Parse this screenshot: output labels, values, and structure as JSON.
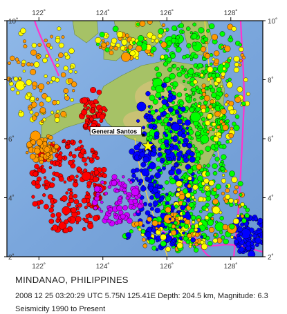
{
  "map": {
    "lon_ticks": [
      {
        "value": 122,
        "label": "122˚"
      },
      {
        "value": 124,
        "label": "124˚"
      },
      {
        "value": 126,
        "label": "126˚"
      },
      {
        "value": 128,
        "label": "128˚"
      }
    ],
    "lat_ticks": [
      {
        "value": 10,
        "label": "10˚"
      },
      {
        "value": 8,
        "label": "8˚"
      },
      {
        "value": 6,
        "label": "6˚"
      },
      {
        "value": 4,
        "label": "4˚"
      },
      {
        "value": 2,
        "label": "2˚"
      }
    ],
    "lon_range": [
      121,
      129
    ],
    "lat_range": [
      2,
      10
    ],
    "city": {
      "name": "General Santos",
      "lon": 125.2,
      "lat": 6.1
    },
    "epicenter": {
      "lon": 125.41,
      "lat": 5.75
    },
    "depth_colors": [
      "#ff0000",
      "#ff9900",
      "#ffff00",
      "#00ff00",
      "#0000ff",
      "#cc00ff"
    ]
  },
  "caption": {
    "title": "MINDANAO, PHILIPPINES",
    "event": "2008 12 25 03:20:29 UTC 5.75N 125.41E Depth: 204.5 km, Magnitude: 6.3",
    "seismicity": "Seismicity 1990 to Present"
  }
}
